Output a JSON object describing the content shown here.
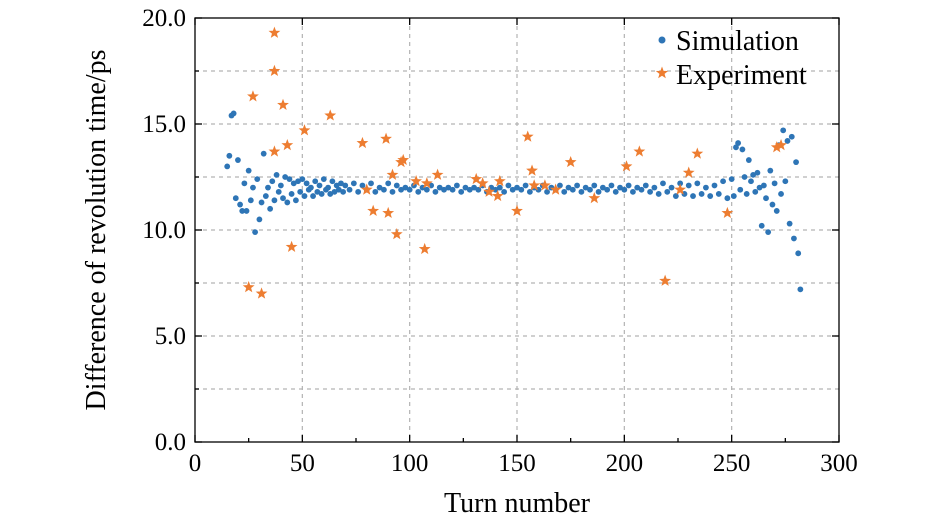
{
  "chart_data": {
    "type": "scatter",
    "xlabel": "Turn number",
    "ylabel": "Difference of revolution time/ps",
    "xlim": [
      0,
      300
    ],
    "ylim": [
      0,
      20
    ],
    "xticks": [
      0,
      50,
      100,
      150,
      200,
      250,
      300
    ],
    "xtick_labels": [
      "0",
      "50",
      "100",
      "150",
      "200",
      "250",
      "300"
    ],
    "yticks": [
      0,
      5,
      10,
      15,
      20
    ],
    "ytick_labels": [
      "0.0",
      "5.0",
      "10.0",
      "15.0",
      "20.0"
    ],
    "grid": true,
    "legend_position": "top-right",
    "series": [
      {
        "name": "Simulation",
        "marker": "dot",
        "color": "#2e75b6",
        "points": [
          [
            15,
            13.0
          ],
          [
            16,
            13.5
          ],
          [
            17,
            15.4
          ],
          [
            18,
            15.5
          ],
          [
            19,
            11.5
          ],
          [
            20,
            13.3
          ],
          [
            21,
            11.2
          ],
          [
            22,
            10.9
          ],
          [
            23,
            12.2
          ],
          [
            24,
            10.9
          ],
          [
            25,
            12.8
          ],
          [
            26,
            11.4
          ],
          [
            27,
            12.0
          ],
          [
            28,
            9.9
          ],
          [
            29,
            12.4
          ],
          [
            30,
            10.5
          ],
          [
            31,
            11.3
          ],
          [
            32,
            13.6
          ],
          [
            33,
            11.6
          ],
          [
            34,
            12.0
          ],
          [
            35,
            11.0
          ],
          [
            36,
            12.3
          ],
          [
            37,
            11.4
          ],
          [
            38,
            12.6
          ],
          [
            39,
            11.8
          ],
          [
            40,
            12.1
          ],
          [
            41,
            11.5
          ],
          [
            42,
            12.5
          ],
          [
            43,
            11.3
          ],
          [
            44,
            12.4
          ],
          [
            45,
            11.7
          ],
          [
            46,
            12.2
          ],
          [
            47,
            11.4
          ],
          [
            48,
            12.3
          ],
          [
            49,
            11.8
          ],
          [
            50,
            12.4
          ],
          [
            51,
            11.6
          ],
          [
            52,
            12.2
          ],
          [
            53,
            11.9
          ],
          [
            54,
            12.0
          ],
          [
            55,
            11.6
          ],
          [
            56,
            12.3
          ],
          [
            57,
            11.8
          ],
          [
            58,
            12.1
          ],
          [
            59,
            11.7
          ],
          [
            60,
            12.4
          ],
          [
            61,
            11.9
          ],
          [
            62,
            12.0
          ],
          [
            63,
            11.7
          ],
          [
            64,
            12.3
          ],
          [
            65,
            11.8
          ],
          [
            66,
            12.1
          ],
          [
            67,
            11.9
          ],
          [
            68,
            12.2
          ],
          [
            69,
            11.8
          ],
          [
            70,
            12.1
          ],
          [
            72,
            11.9
          ],
          [
            74,
            12.2
          ],
          [
            76,
            11.8
          ],
          [
            78,
            12.1
          ],
          [
            80,
            11.9
          ],
          [
            82,
            12.2
          ],
          [
            84,
            11.8
          ],
          [
            86,
            12.0
          ],
          [
            88,
            11.9
          ],
          [
            90,
            12.2
          ],
          [
            92,
            11.8
          ],
          [
            94,
            12.1
          ],
          [
            96,
            11.9
          ],
          [
            98,
            12.0
          ],
          [
            100,
            11.9
          ],
          [
            102,
            12.1
          ],
          [
            104,
            11.8
          ],
          [
            106,
            12.0
          ],
          [
            108,
            11.9
          ],
          [
            110,
            12.1
          ],
          [
            112,
            11.8
          ],
          [
            114,
            12.0
          ],
          [
            116,
            11.9
          ],
          [
            118,
            12.0
          ],
          [
            120,
            11.9
          ],
          [
            122,
            12.1
          ],
          [
            124,
            11.8
          ],
          [
            126,
            12.0
          ],
          [
            128,
            11.9
          ],
          [
            130,
            12.0
          ],
          [
            132,
            11.9
          ],
          [
            134,
            12.1
          ],
          [
            136,
            11.8
          ],
          [
            138,
            12.0
          ],
          [
            140,
            11.9
          ],
          [
            142,
            12.0
          ],
          [
            144,
            11.8
          ],
          [
            146,
            12.1
          ],
          [
            148,
            11.9
          ],
          [
            150,
            12.0
          ],
          [
            152,
            11.9
          ],
          [
            154,
            12.1
          ],
          [
            156,
            11.8
          ],
          [
            158,
            12.0
          ],
          [
            160,
            11.9
          ],
          [
            162,
            12.1
          ],
          [
            164,
            11.8
          ],
          [
            166,
            12.0
          ],
          [
            168,
            11.9
          ],
          [
            170,
            12.1
          ],
          [
            172,
            11.8
          ],
          [
            174,
            12.0
          ],
          [
            176,
            11.9
          ],
          [
            178,
            12.1
          ],
          [
            180,
            11.8
          ],
          [
            182,
            12.0
          ],
          [
            184,
            11.9
          ],
          [
            186,
            12.1
          ],
          [
            188,
            11.8
          ],
          [
            190,
            12.0
          ],
          [
            192,
            11.9
          ],
          [
            194,
            12.1
          ],
          [
            196,
            11.8
          ],
          [
            198,
            12.0
          ],
          [
            200,
            11.9
          ],
          [
            202,
            12.1
          ],
          [
            204,
            11.8
          ],
          [
            206,
            12.0
          ],
          [
            208,
            11.9
          ],
          [
            210,
            12.1
          ],
          [
            212,
            11.8
          ],
          [
            214,
            12.0
          ],
          [
            216,
            11.7
          ],
          [
            218,
            12.2
          ],
          [
            220,
            11.8
          ],
          [
            222,
            12.0
          ],
          [
            224,
            11.6
          ],
          [
            226,
            12.2
          ],
          [
            228,
            11.7
          ],
          [
            230,
            12.1
          ],
          [
            232,
            11.6
          ],
          [
            234,
            12.2
          ],
          [
            236,
            11.7
          ],
          [
            238,
            12.0
          ],
          [
            240,
            11.6
          ],
          [
            242,
            12.1
          ],
          [
            244,
            11.7
          ],
          [
            246,
            12.3
          ],
          [
            248,
            11.5
          ],
          [
            250,
            12.4
          ],
          [
            251,
            11.6
          ],
          [
            252,
            13.9
          ],
          [
            253,
            14.1
          ],
          [
            254,
            11.9
          ],
          [
            255,
            13.8
          ],
          [
            256,
            12.5
          ],
          [
            257,
            11.7
          ],
          [
            258,
            13.3
          ],
          [
            259,
            12.3
          ],
          [
            260,
            12.6
          ],
          [
            261,
            11.8
          ],
          [
            262,
            12.7
          ],
          [
            263,
            12.0
          ],
          [
            264,
            10.2
          ],
          [
            265,
            12.1
          ],
          [
            266,
            11.5
          ],
          [
            267,
            9.9
          ],
          [
            268,
            12.8
          ],
          [
            269,
            11.2
          ],
          [
            270,
            12.2
          ],
          [
            271,
            10.9
          ],
          [
            272,
            14.0
          ],
          [
            273,
            11.7
          ],
          [
            274,
            14.7
          ],
          [
            275,
            12.3
          ],
          [
            276,
            14.2
          ],
          [
            277,
            10.3
          ],
          [
            278,
            14.4
          ],
          [
            279,
            9.6
          ],
          [
            280,
            13.2
          ],
          [
            281,
            8.9
          ],
          [
            282,
            7.2
          ]
        ]
      },
      {
        "name": "Experiment",
        "marker": "star",
        "color": "#ed7d31",
        "points": [
          [
            25,
            7.3
          ],
          [
            27,
            16.3
          ],
          [
            31,
            7.0
          ],
          [
            37,
            19.3
          ],
          [
            37,
            17.5
          ],
          [
            37,
            13.7
          ],
          [
            41,
            15.9
          ],
          [
            43,
            14.0
          ],
          [
            45,
            9.2
          ],
          [
            51,
            14.7
          ],
          [
            63,
            15.4
          ],
          [
            78,
            14.1
          ],
          [
            80,
            11.9
          ],
          [
            83,
            10.9
          ],
          [
            89,
            14.3
          ],
          [
            90,
            10.8
          ],
          [
            92,
            12.6
          ],
          [
            94,
            9.8
          ],
          [
            96,
            13.2
          ],
          [
            97,
            13.3
          ],
          [
            103,
            12.3
          ],
          [
            107,
            9.1
          ],
          [
            108,
            12.2
          ],
          [
            113,
            12.6
          ],
          [
            131,
            12.4
          ],
          [
            134,
            12.2
          ],
          [
            137,
            11.8
          ],
          [
            141,
            11.6
          ],
          [
            142,
            12.3
          ],
          [
            150,
            10.9
          ],
          [
            155,
            14.4
          ],
          [
            157,
            12.8
          ],
          [
            158,
            12.1
          ],
          [
            163,
            12.1
          ],
          [
            168,
            11.9
          ],
          [
            175,
            13.2
          ],
          [
            186,
            11.5
          ],
          [
            201,
            13.0
          ],
          [
            207,
            13.7
          ],
          [
            219,
            7.6
          ],
          [
            226,
            11.9
          ],
          [
            230,
            12.7
          ],
          [
            234,
            13.6
          ],
          [
            248,
            10.8
          ],
          [
            271,
            13.9
          ],
          [
            273,
            14.0
          ]
        ]
      }
    ]
  }
}
